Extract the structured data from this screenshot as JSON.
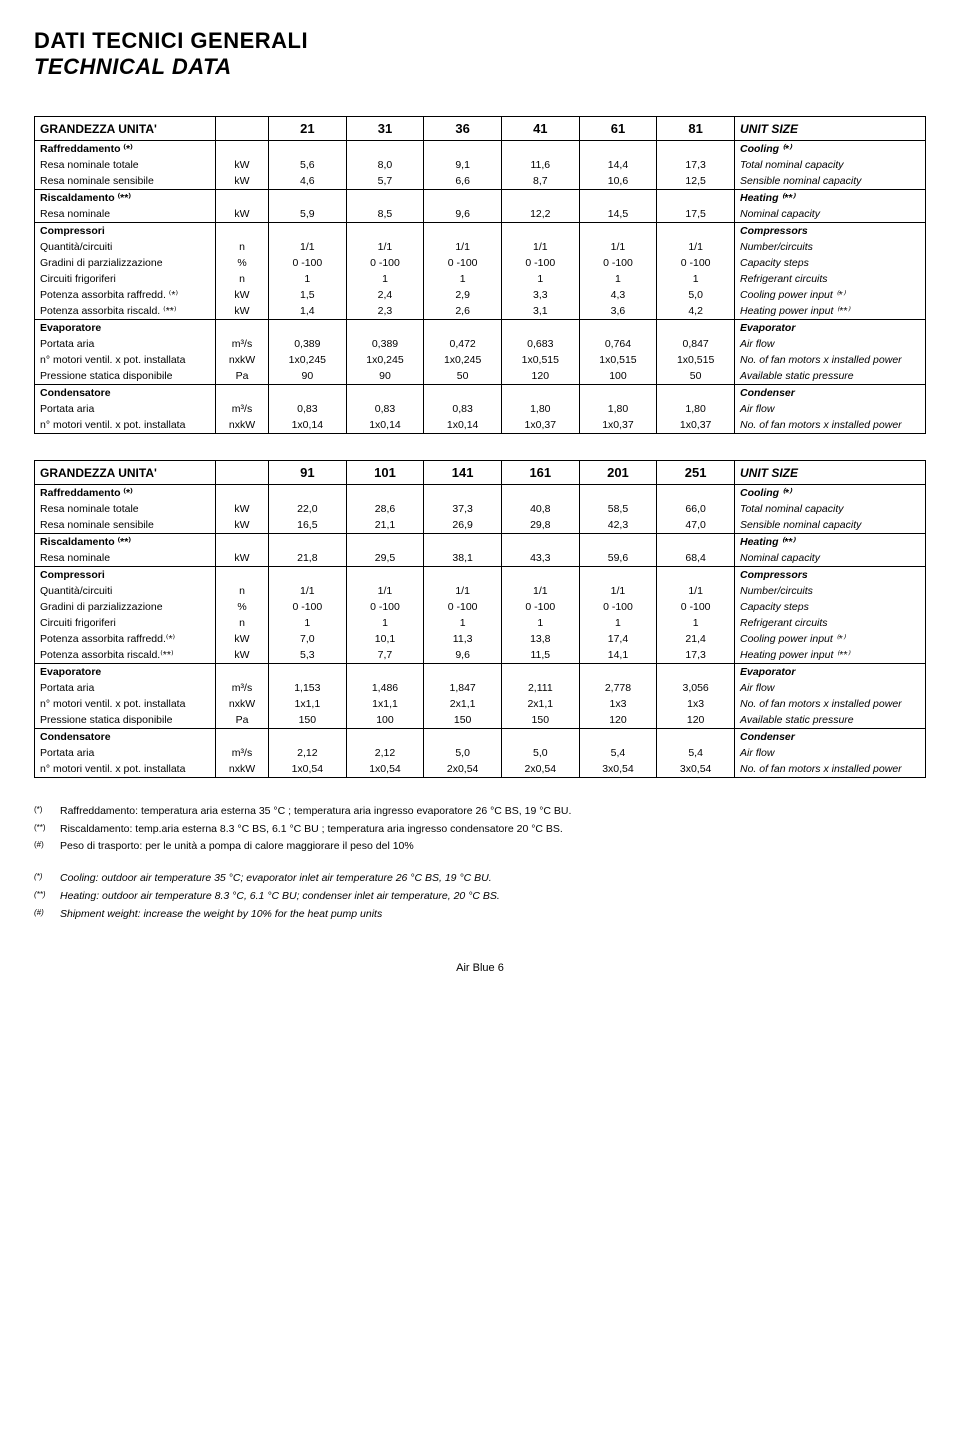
{
  "titles": {
    "main": "DATI TECNICI GENERALI",
    "sub": "TECHNICAL DATA"
  },
  "table1": {
    "header_left": "GRANDEZZA UNITA'",
    "header_right": "UNIT SIZE",
    "sizes": [
      "21",
      "31",
      "36",
      "41",
      "61",
      "81"
    ],
    "sections": [
      {
        "label": "Raffreddamento ⁽*⁾",
        "desc": "Cooling ⁽*⁾",
        "rows": [
          {
            "label": "Resa nominale totale",
            "unit": "kW",
            "vals": [
              "5,6",
              "8,0",
              "9,1",
              "11,6",
              "14,4",
              "17,3"
            ],
            "desc": "Total nominal capacity"
          },
          {
            "label": "Resa nominale sensibile",
            "unit": "kW",
            "vals": [
              "4,6",
              "5,7",
              "6,6",
              "8,7",
              "10,6",
              "12,5"
            ],
            "desc": "Sensible nominal capacity"
          }
        ]
      },
      {
        "label": "Riscaldamento ⁽**⁾",
        "desc": "Heating ⁽**⁾",
        "rows": [
          {
            "label": "Resa nominale",
            "unit": "kW",
            "vals": [
              "5,9",
              "8,5",
              "9,6",
              "12,2",
              "14,5",
              "17,5"
            ],
            "desc": "Nominal capacity"
          }
        ]
      },
      {
        "label": "Compressori",
        "desc": "Compressors",
        "rows": [
          {
            "label": "Quantità/circuiti",
            "unit": "n",
            "vals": [
              "1/1",
              "1/1",
              "1/1",
              "1/1",
              "1/1",
              "1/1"
            ],
            "desc": "Number/circuits"
          },
          {
            "label": "Gradini di parzializzazione",
            "unit": "%",
            "vals": [
              "0 -100",
              "0 -100",
              "0 -100",
              "0 -100",
              "0 -100",
              "0 -100"
            ],
            "desc": "Capacity steps"
          },
          {
            "label": "Circuiti frigoriferi",
            "unit": "n",
            "vals": [
              "1",
              "1",
              "1",
              "1",
              "1",
              "1"
            ],
            "desc": "Refrigerant circuits"
          },
          {
            "label": "Potenza assorbita raffredd. ⁽*⁾",
            "unit": "kW",
            "vals": [
              "1,5",
              "2,4",
              "2,9",
              "3,3",
              "4,3",
              "5,0"
            ],
            "desc": "Cooling power input ⁽*⁾"
          },
          {
            "label": "Potenza assorbita riscald. ⁽**⁾",
            "unit": "kW",
            "vals": [
              "1,4",
              "2,3",
              "2,6",
              "3,1",
              "3,6",
              "4,2"
            ],
            "desc": "Heating power input ⁽**⁾"
          }
        ]
      },
      {
        "label": "Evaporatore",
        "desc": "Evaporator",
        "rows": [
          {
            "label": "Portata aria",
            "unit": "m³/s",
            "vals": [
              "0,389",
              "0,389",
              "0,472",
              "0,683",
              "0,764",
              "0,847"
            ],
            "desc": "Air flow"
          },
          {
            "label": "n° motori ventil. x pot. installata",
            "unit": "nxkW",
            "vals": [
              "1x0,245",
              "1x0,245",
              "1x0,245",
              "1x0,515",
              "1x0,515",
              "1x0,515"
            ],
            "desc": "No. of fan motors x installed power"
          },
          {
            "label": "Pressione statica disponibile",
            "unit": "Pa",
            "vals": [
              "90",
              "90",
              "50",
              "120",
              "100",
              "50"
            ],
            "desc": "Available static pressure"
          }
        ]
      },
      {
        "label": "Condensatore",
        "desc": "Condenser",
        "rows": [
          {
            "label": "Portata aria",
            "unit": "m³/s",
            "vals": [
              "0,83",
              "0,83",
              "0,83",
              "1,80",
              "1,80",
              "1,80"
            ],
            "desc": "Air flow"
          },
          {
            "label": "n° motori ventil. x pot. installata",
            "unit": "nxkW",
            "vals": [
              "1x0,14",
              "1x0,14",
              "1x0,14",
              "1x0,37",
              "1x0,37",
              "1x0,37"
            ],
            "desc": "No. of fan motors x installed power"
          }
        ]
      }
    ]
  },
  "table2": {
    "header_left": "GRANDEZZA UNITA'",
    "header_right": "UNIT SIZE",
    "sizes": [
      "91",
      "101",
      "141",
      "161",
      "201",
      "251"
    ],
    "sections": [
      {
        "label": "Raffreddamento ⁽*⁾",
        "desc": "Cooling ⁽*⁾",
        "rows": [
          {
            "label": "Resa nominale totale",
            "unit": "kW",
            "vals": [
              "22,0",
              "28,6",
              "37,3",
              "40,8",
              "58,5",
              "66,0"
            ],
            "desc": "Total nominal capacity"
          },
          {
            "label": "Resa nominale sensibile",
            "unit": "kW",
            "vals": [
              "16,5",
              "21,1",
              "26,9",
              "29,8",
              "42,3",
              "47,0"
            ],
            "desc": "Sensible nominal capacity"
          }
        ]
      },
      {
        "label": "Riscaldamento ⁽**⁾",
        "desc": "Heating ⁽**⁾",
        "rows": [
          {
            "label": "Resa nominale",
            "unit": "kW",
            "vals": [
              "21,8",
              "29,5",
              "38,1",
              "43,3",
              "59,6",
              "68,4"
            ],
            "desc": "Nominal capacity"
          }
        ]
      },
      {
        "label": "Compressori",
        "desc": "Compressors",
        "rows": [
          {
            "label": "Quantità/circuiti",
            "unit": "n",
            "vals": [
              "1/1",
              "1/1",
              "1/1",
              "1/1",
              "1/1",
              "1/1"
            ],
            "desc": "Number/circuits"
          },
          {
            "label": "Gradini di parzializzazione",
            "unit": "%",
            "vals": [
              "0 -100",
              "0 -100",
              "0 -100",
              "0 -100",
              "0 -100",
              "0 -100"
            ],
            "desc": "Capacity steps"
          },
          {
            "label": "Circuiti frigoriferi",
            "unit": "n",
            "vals": [
              "1",
              "1",
              "1",
              "1",
              "1",
              "1"
            ],
            "desc": "Refrigerant circuits"
          },
          {
            "label": "Potenza assorbita raffredd.⁽*⁾",
            "unit": "kW",
            "vals": [
              "7,0",
              "10,1",
              "11,3",
              "13,8",
              "17,4",
              "21,4"
            ],
            "desc": "Cooling power input ⁽*⁾"
          },
          {
            "label": "Potenza assorbita riscald.⁽**⁾",
            "unit": "kW",
            "vals": [
              "5,3",
              "7,7",
              "9,6",
              "11,5",
              "14,1",
              "17,3"
            ],
            "desc": "Heating power input ⁽**⁾"
          }
        ]
      },
      {
        "label": "Evaporatore",
        "desc": "Evaporator",
        "rows": [
          {
            "label": "Portata aria",
            "unit": "m³/s",
            "vals": [
              "1,153",
              "1,486",
              "1,847",
              "2,111",
              "2,778",
              "3,056"
            ],
            "desc": "Air flow"
          },
          {
            "label": "n° motori ventil. x pot. installata",
            "unit": "nxkW",
            "vals": [
              "1x1,1",
              "1x1,1",
              "2x1,1",
              "2x1,1",
              "1x3",
              "1x3"
            ],
            "desc": "No. of fan motors x installed power"
          },
          {
            "label": "Pressione statica disponibile",
            "unit": "Pa",
            "vals": [
              "150",
              "100",
              "150",
              "150",
              "120",
              "120"
            ],
            "desc": "Available static pressure"
          }
        ]
      },
      {
        "label": "Condensatore",
        "desc": "Condenser",
        "rows": [
          {
            "label": "Portata aria",
            "unit": "m³/s",
            "vals": [
              "2,12",
              "2,12",
              "5,0",
              "5,0",
              "5,4",
              "5,4"
            ],
            "desc": "Air flow"
          },
          {
            "label": "n° motori ventil. x pot. installata",
            "unit": "nxkW",
            "vals": [
              "1x0,54",
              "1x0,54",
              "2x0,54",
              "2x0,54",
              "3x0,54",
              "3x0,54"
            ],
            "desc": "No. of fan motors x installed power"
          }
        ]
      }
    ]
  },
  "notes_it": [
    {
      "sup": "(*)",
      "text": "Raffreddamento: temperatura aria esterna 35 °C ; temperatura aria ingresso evaporatore 26 °C BS, 19 °C BU."
    },
    {
      "sup": "(**)",
      "text": "Riscaldamento: temp.aria esterna 8.3 °C BS, 6.1 °C BU ; temperatura aria ingresso condensatore 20 °C BS."
    },
    {
      "sup": "(#)",
      "text": "Peso di trasporto: per le unità a pompa di calore maggiorare il peso del 10%"
    }
  ],
  "notes_en": [
    {
      "sup": "(*)",
      "text": "Cooling: outdoor air temperature 35 °C; evaporator inlet air  temperature 26 °C BS, 19 °C BU."
    },
    {
      "sup": "(**)",
      "text": "Heating: outdoor air temperature 8.3 °C, 6.1 °C BU; condenser inlet air temperature, 20 °C BS."
    },
    {
      "sup": "(#)",
      "text": "Shipment weight: increase the weight by 10% for the heat pump units"
    }
  ],
  "footer": "Air Blue 6"
}
